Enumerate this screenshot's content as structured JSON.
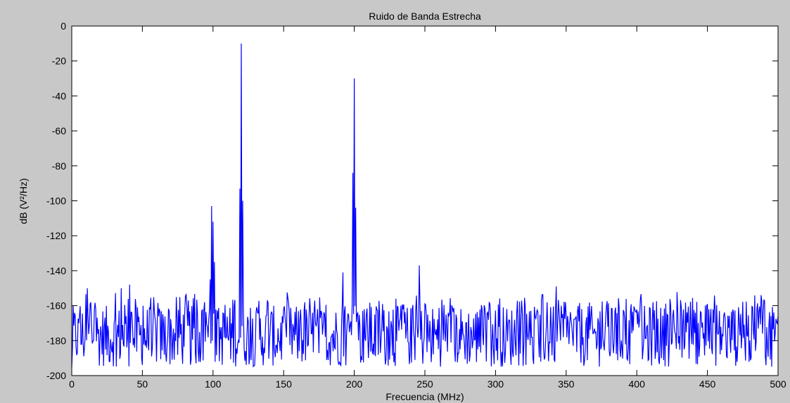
{
  "colors": {
    "figure_background": "#c8c8c8",
    "plot_background": "#ffffff",
    "series_line": "#0000ff",
    "axes": "#000000"
  },
  "chart_data": {
    "type": "line",
    "title": "Ruido de Banda Estrecha",
    "xlabel": "Frecuencia (MHz)",
    "ylabel": "dB (V²/Hz)",
    "xlim": [
      0,
      500
    ],
    "ylim": [
      -200,
      0
    ],
    "xticks": [
      0,
      50,
      100,
      150,
      200,
      250,
      300,
      350,
      400,
      450,
      500
    ],
    "yticks": [
      0,
      -20,
      -40,
      -60,
      -80,
      -100,
      -120,
      -140,
      -160,
      -180,
      -200
    ],
    "grid": false,
    "legend": "none",
    "noise_floor_db": [
      -185,
      -170
    ],
    "peaks": [
      {
        "x": 0,
        "y": -195
      },
      {
        "x": 5,
        "y": -170
      },
      {
        "x": 11,
        "y": -150
      },
      {
        "x": 35,
        "y": -150
      },
      {
        "x": 41,
        "y": -148
      },
      {
        "x": 98,
        "y": -145
      },
      {
        "x": 99,
        "y": -103
      },
      {
        "x": 100,
        "y": -112
      },
      {
        "x": 101,
        "y": -135
      },
      {
        "x": 115,
        "y": -160
      },
      {
        "x": 119,
        "y": -93
      },
      {
        "x": 120,
        "y": -10
      },
      {
        "x": 121,
        "y": -100
      },
      {
        "x": 192,
        "y": -141
      },
      {
        "x": 199,
        "y": -84
      },
      {
        "x": 200,
        "y": -30
      },
      {
        "x": 201,
        "y": -104
      },
      {
        "x": 246,
        "y": -137
      },
      {
        "x": 343,
        "y": -149
      },
      {
        "x": 488,
        "y": -154
      }
    ]
  }
}
